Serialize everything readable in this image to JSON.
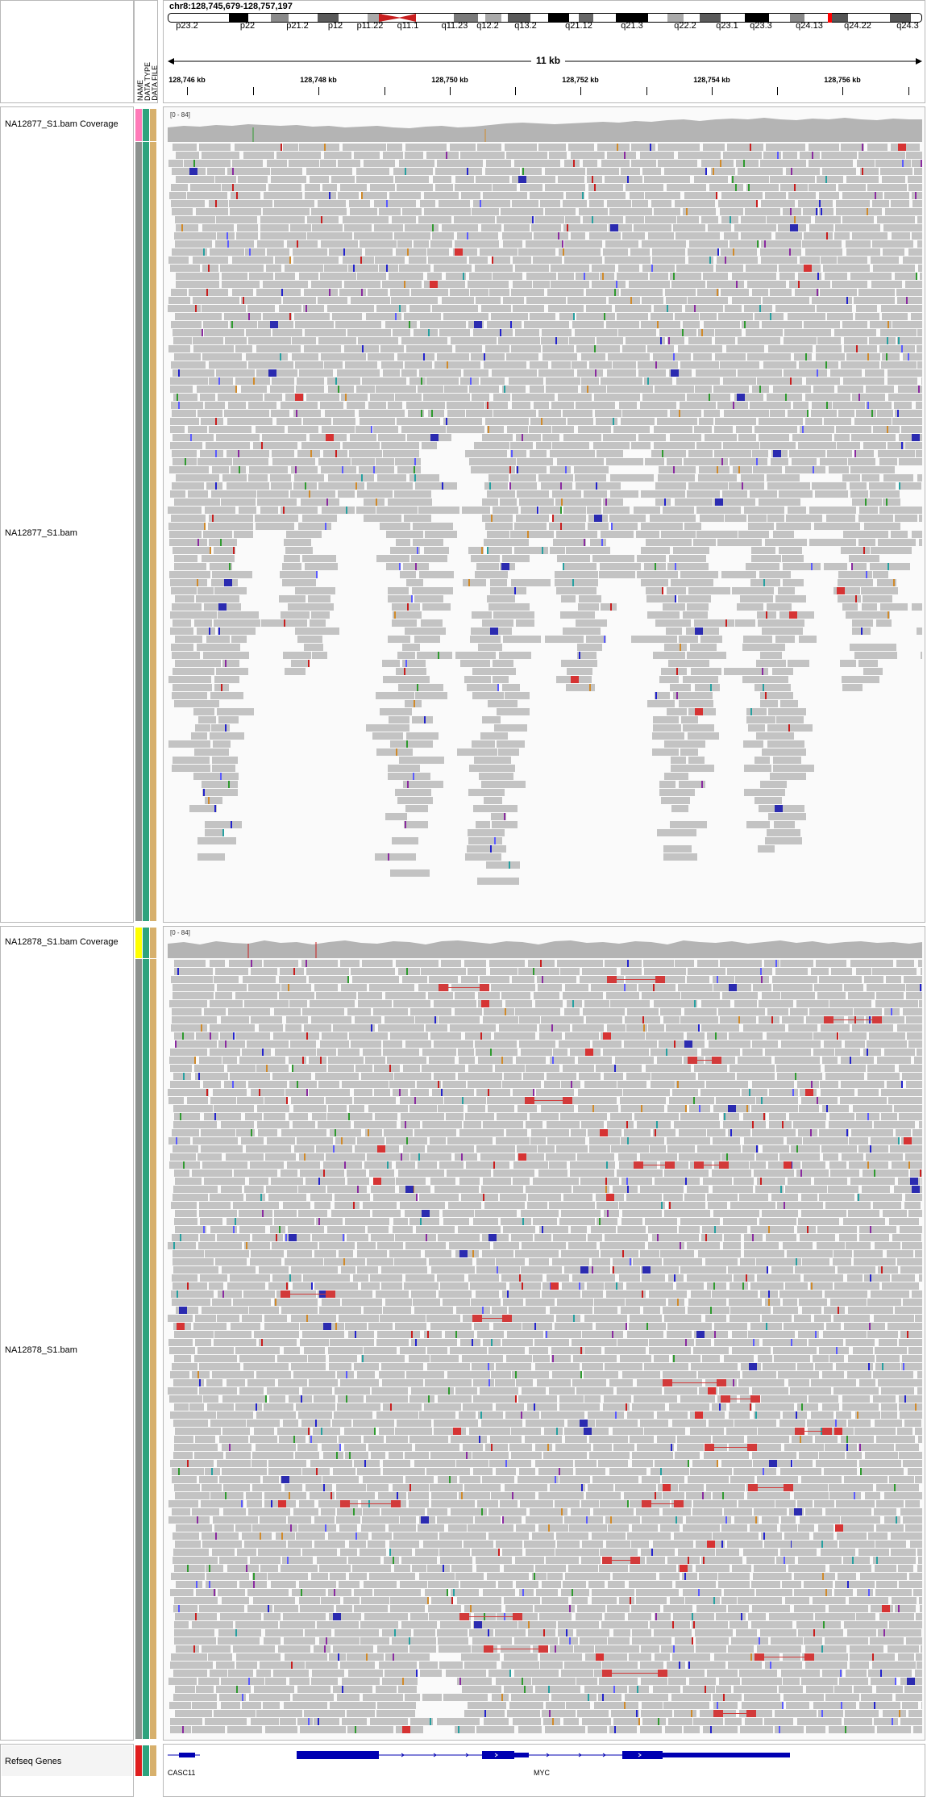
{
  "locus": "chr8:128,745,679-128,757,197",
  "scale_label": "11 kb",
  "ideogram_bands": [
    "p23.2",
    "p22",
    "p21.2",
    "p12",
    "p11.22",
    "q11.1",
    "q11.23",
    "q12.2",
    "q13.2",
    "q21.12",
    "q21.3",
    "q22.2",
    "q23.1",
    "q23.3",
    "q24.13",
    "q24.22",
    "q24.3"
  ],
  "ruler_ticks": [
    "128,746 kb",
    "128,748 kb",
    "128,750 kb",
    "128,752 kb",
    "128,754 kb",
    "128,756 kb"
  ],
  "attribute_headers": [
    "NAME",
    "DATA TYPE",
    "DATA FILE"
  ],
  "tracks": {
    "cov1": {
      "name": "NA12877_S1.bam Coverage",
      "range": "[0 - 84]"
    },
    "bam1": {
      "name": "NA12877_S1.bam"
    },
    "cov2": {
      "name": "NA12878_S1.bam Coverage",
      "range": "[0 - 84]"
    },
    "bam2": {
      "name": "NA12878_S1.bam"
    },
    "genes": {
      "name": "Refseq Genes",
      "gene1": "CASC11",
      "gene2": "MYC"
    }
  },
  "colors": {
    "read": "#c3c3c3",
    "coverage": "#b4b4b4",
    "gene": "#0000b2",
    "attr_cov1": "#ff7ab8",
    "attr_cov2": "#ffff00",
    "attr_genes": "#e01e1e",
    "attr_gray": "#8c918e",
    "attr_teal": "#2ea37d",
    "attr_tan": "#d7b06c"
  }
}
